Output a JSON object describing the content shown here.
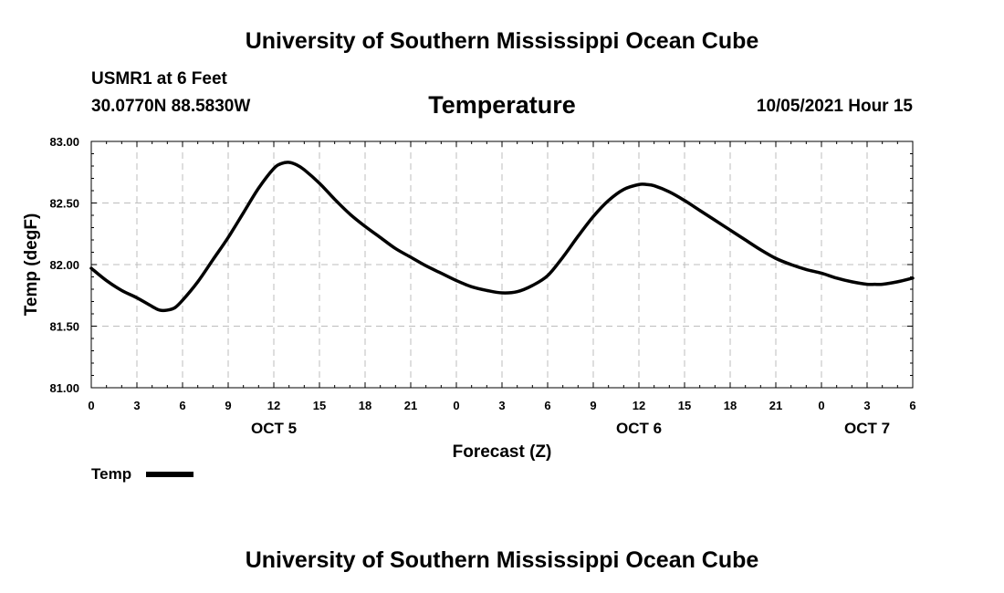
{
  "header": {
    "title": "University of Southern Mississippi Ocean Cube",
    "station": "USMR1 at 6 Feet",
    "coordinates": "30.0770N  88.5830W",
    "variable": "Temperature",
    "datetime": "10/05/2021 Hour 15"
  },
  "footer": {
    "title": "University of Southern Mississippi Ocean Cube"
  },
  "chart_data": {
    "type": "line",
    "xlabel": "Forecast (Z)",
    "ylabel": "Temp (degF)",
    "xlim": [
      0,
      54
    ],
    "ylim": [
      81.0,
      83.0
    ],
    "x_ticks": [
      0,
      3,
      6,
      9,
      12,
      15,
      18,
      21,
      24,
      27,
      30,
      33,
      36,
      39,
      42,
      45,
      48,
      51,
      54
    ],
    "x_tick_labels": [
      "0",
      "3",
      "6",
      "9",
      "12",
      "15",
      "18",
      "21",
      "0",
      "3",
      "6",
      "9",
      "12",
      "15",
      "18",
      "21",
      "0",
      "3",
      "6"
    ],
    "y_ticks": [
      81.0,
      81.5,
      82.0,
      82.5,
      83.0
    ],
    "y_tick_labels": [
      "81.00",
      "81.50",
      "82.00",
      "82.50",
      "83.00"
    ],
    "day_labels": [
      {
        "x": 12,
        "label": "OCT 5"
      },
      {
        "x": 36,
        "label": "OCT 6"
      },
      {
        "x": 51,
        "label": "OCT 7"
      }
    ],
    "grid": true,
    "legend": "bottom-left",
    "series": [
      {
        "name": "Temp",
        "color": "#000000",
        "x": [
          0,
          1,
          2,
          3,
          4,
          4.5,
          5,
          5.5,
          6,
          7,
          8,
          9,
          10,
          11,
          12,
          12.5,
          13,
          13.5,
          14,
          15,
          16,
          17,
          18,
          19,
          20,
          21,
          22,
          23,
          24,
          25,
          26,
          27,
          28,
          29,
          30,
          31,
          32,
          33,
          34,
          35,
          36,
          36.5,
          37,
          38,
          39,
          40,
          41,
          42,
          43,
          44,
          45,
          46,
          47,
          48,
          49,
          50,
          51,
          51.5,
          52,
          53,
          54
        ],
        "y": [
          81.97,
          81.87,
          81.79,
          81.73,
          81.66,
          81.63,
          81.63,
          81.65,
          81.71,
          81.86,
          82.04,
          82.22,
          82.42,
          82.62,
          82.78,
          82.82,
          82.83,
          82.81,
          82.77,
          82.66,
          82.53,
          82.41,
          82.31,
          82.22,
          82.13,
          82.06,
          81.99,
          81.93,
          81.87,
          81.82,
          81.79,
          81.77,
          81.78,
          81.83,
          81.91,
          82.06,
          82.23,
          82.39,
          82.52,
          82.61,
          82.65,
          82.65,
          82.64,
          82.59,
          82.52,
          82.44,
          82.36,
          82.28,
          82.2,
          82.12,
          82.05,
          82.0,
          81.96,
          81.93,
          81.89,
          81.86,
          81.84,
          81.84,
          81.84,
          81.86,
          81.89
        ]
      }
    ]
  }
}
